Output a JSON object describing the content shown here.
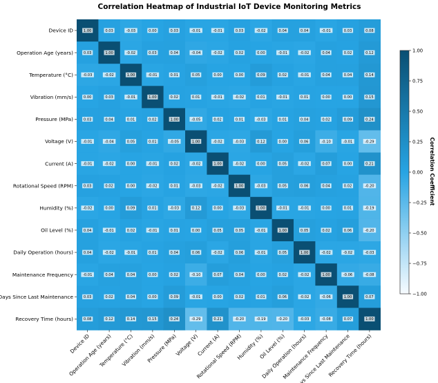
{
  "chart_data": {
    "type": "heatmap",
    "title": "Correlation Heatmap of Industrial IoT Device Monitoring Metrics",
    "labels": [
      "Device ID",
      "Operation Age (years)",
      "Temperature (°C)",
      "Vibration (mm/s)",
      "Pressure (MPa)",
      "Voltage (V)",
      "Current (A)",
      "Rotational Speed (RPM)",
      "Humidity (%)",
      "Oil Level (%)",
      "Daily Operation (hours)",
      "Maintenance Frequency",
      "Days Since Last Maintenance",
      "Recovery Time (hours)"
    ],
    "matrix": [
      [
        1.0,
        0.03,
        -0.03,
        -0.0,
        0.03,
        -0.01,
        -0.01,
        0.03,
        -0.02,
        0.04,
        0.04,
        -0.01,
        0.03,
        0.08
      ],
      [
        0.03,
        1.0,
        -0.02,
        0.03,
        0.04,
        -0.04,
        -0.02,
        0.02,
        0.0,
        -0.01,
        -0.02,
        0.04,
        0.02,
        0.12
      ],
      [
        -0.03,
        -0.02,
        1.0,
        -0.01,
        0.01,
        0.05,
        -0.0,
        -0.0,
        0.09,
        0.02,
        -0.01,
        0.04,
        0.04,
        0.14
      ],
      [
        -0.0,
        0.03,
        -0.01,
        1.0,
        0.02,
        0.01,
        -0.01,
        -0.02,
        0.01,
        -0.01,
        0.01,
        -0.0,
        -0.0,
        0.15
      ],
      [
        0.03,
        0.04,
        0.01,
        0.02,
        1.0,
        -0.05,
        0.02,
        0.01,
        -0.03,
        0.01,
        0.04,
        0.02,
        0.09,
        0.24
      ],
      [
        -0.01,
        -0.04,
        0.05,
        0.01,
        -0.05,
        1.0,
        -0.02,
        -0.03,
        0.12,
        0.0,
        0.06,
        -0.1,
        -0.01,
        -0.29
      ],
      [
        -0.01,
        -0.02,
        -0.0,
        -0.01,
        0.02,
        -0.02,
        1.0,
        -0.02,
        0.0,
        0.05,
        -0.02,
        0.07,
        0.0,
        0.21
      ],
      [
        0.03,
        0.02,
        -0.0,
        -0.02,
        0.01,
        -0.03,
        -0.02,
        1.0,
        -0.03,
        0.05,
        0.06,
        0.04,
        0.02,
        -0.2
      ],
      [
        -0.02,
        0.0,
        0.09,
        0.01,
        -0.03,
        0.12,
        0.0,
        -0.03,
        1.0,
        -0.01,
        -0.01,
        0.0,
        0.01,
        -0.19
      ],
      [
        0.04,
        -0.01,
        0.02,
        -0.01,
        0.01,
        0.0,
        0.05,
        0.05,
        -0.01,
        1.0,
        0.05,
        0.02,
        0.06,
        -0.2
      ],
      [
        0.04,
        -0.02,
        -0.01,
        0.01,
        0.04,
        0.06,
        -0.02,
        0.06,
        -0.01,
        0.05,
        1.0,
        -0.02,
        -0.02,
        -0.03
      ],
      [
        -0.01,
        0.04,
        0.04,
        -0.0,
        0.02,
        -0.1,
        0.07,
        0.04,
        0.0,
        0.02,
        -0.02,
        1.0,
        -0.06,
        -0.08
      ],
      [
        0.03,
        0.02,
        0.04,
        -0.0,
        0.09,
        -0.01,
        0.0,
        0.02,
        0.01,
        0.06,
        -0.02,
        -0.06,
        1.0,
        0.07
      ],
      [
        0.08,
        0.12,
        0.14,
        0.15,
        0.24,
        -0.29,
        0.21,
        -0.2,
        -0.19,
        -0.2,
        -0.03,
        -0.08,
        0.07,
        1.0
      ]
    ],
    "colorbar": {
      "label": "Correlation Coefficient",
      "range": [
        -1.0,
        1.0
      ],
      "ticks": [
        1.0,
        0.75,
        0.5,
        0.25,
        0.0,
        -0.25,
        -0.5,
        -0.75,
        -1.0
      ],
      "tick_labels": [
        "1.00",
        "0.75",
        "0.50",
        "0.25",
        "0.00",
        "−0.25",
        "−0.50",
        "−0.75",
        "−1.00"
      ]
    },
    "colormap": {
      "low": "#f7fbff",
      "mid": "#27a4e3",
      "high": "#0a4f73"
    }
  }
}
